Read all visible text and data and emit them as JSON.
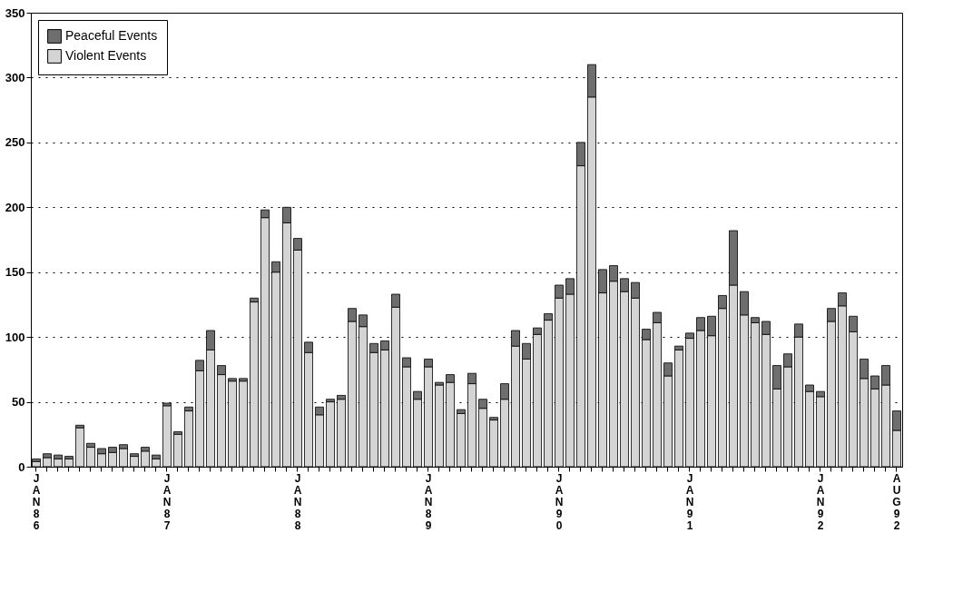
{
  "chart_data": {
    "type": "bar",
    "stacked": true,
    "categories": [
      "JAN 86",
      null,
      null,
      null,
      null,
      null,
      null,
      null,
      null,
      null,
      null,
      null,
      "JAN 87",
      null,
      null,
      null,
      null,
      null,
      null,
      null,
      null,
      null,
      null,
      null,
      "JAN 88",
      null,
      null,
      null,
      null,
      null,
      null,
      null,
      null,
      null,
      null,
      null,
      "JAN 89",
      null,
      null,
      null,
      null,
      null,
      null,
      null,
      null,
      null,
      null,
      null,
      "JAN 90",
      null,
      null,
      null,
      null,
      null,
      null,
      null,
      null,
      null,
      null,
      null,
      "JAN 91",
      null,
      null,
      null,
      null,
      null,
      null,
      null,
      null,
      null,
      null,
      null,
      "JAN 92",
      null,
      null,
      null,
      null,
      null,
      null,
      "AUG 92"
    ],
    "series": [
      {
        "name": "Violent Events",
        "color": "#d4d4d4",
        "values": [
          4,
          7,
          6,
          6,
          30,
          15,
          10,
          11,
          14,
          8,
          12,
          6,
          47,
          25,
          43,
          74,
          90,
          71,
          66,
          66,
          127,
          192,
          150,
          188,
          167,
          88,
          40,
          50,
          52,
          112,
          108,
          88,
          90,
          123,
          77,
          52,
          77,
          63,
          65,
          41,
          64,
          45,
          36,
          52,
          93,
          83,
          102,
          113,
          130,
          133,
          232,
          285,
          134,
          143,
          135,
          130,
          98,
          111,
          70,
          90,
          99,
          105,
          101,
          122,
          140,
          117,
          111,
          102,
          60,
          77,
          100,
          58,
          54,
          112,
          124,
          104,
          68,
          60,
          63,
          28
        ]
      },
      {
        "name": "Peaceful Events",
        "color": "#6e6e6e",
        "values": [
          2,
          3,
          3,
          2,
          2,
          3,
          4,
          4,
          3,
          2,
          3,
          3,
          2,
          2,
          3,
          8,
          15,
          7,
          2,
          2,
          3,
          6,
          8,
          12,
          9,
          8,
          6,
          2,
          3,
          10,
          9,
          7,
          7,
          10,
          7,
          6,
          6,
          2,
          6,
          3,
          8,
          7,
          2,
          12,
          12,
          12,
          5,
          5,
          10,
          12,
          18,
          25,
          18,
          12,
          10,
          12,
          8,
          8,
          10,
          3,
          4,
          10,
          15,
          10,
          42,
          18,
          4,
          10,
          18,
          10,
          10,
          5,
          4,
          10,
          10,
          12,
          15,
          10,
          15,
          15
        ]
      }
    ],
    "ylim": [
      0,
      350
    ],
    "yticks": [
      0,
      50,
      100,
      150,
      200,
      250,
      300,
      350
    ],
    "grid": "y",
    "legend": "top left"
  }
}
